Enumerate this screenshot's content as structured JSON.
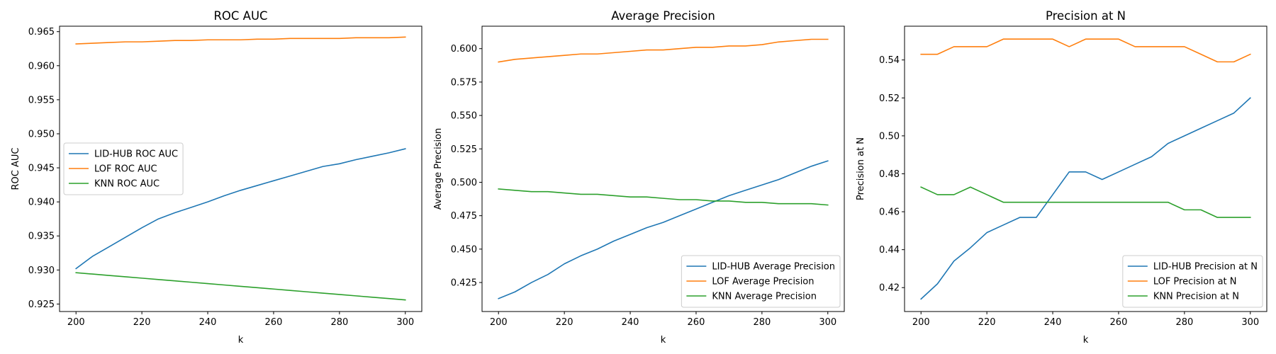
{
  "chart_data": [
    {
      "type": "line",
      "title": "ROC AUC",
      "xlabel": "k",
      "ylabel": "ROC AUC",
      "xlim": [
        195,
        305
      ],
      "ylim": [
        0.9239,
        0.9658
      ],
      "xticks": [
        200,
        220,
        240,
        260,
        280,
        300
      ],
      "yticks": [
        0.925,
        0.93,
        0.935,
        0.94,
        0.945,
        0.95,
        0.955,
        0.96,
        0.965
      ],
      "ytick_decimals": 3,
      "legend_position": "center-left",
      "x": [
        200,
        205,
        210,
        215,
        220,
        225,
        230,
        235,
        240,
        245,
        250,
        255,
        260,
        265,
        270,
        275,
        280,
        285,
        290,
        295,
        300
      ],
      "series": [
        {
          "name": "LID-HUB ROC AUC",
          "color": "#1f77b4",
          "values": [
            0.9302,
            0.932,
            0.9334,
            0.9348,
            0.9362,
            0.9375,
            0.9384,
            0.9392,
            0.94,
            0.9409,
            0.9417,
            0.9424,
            0.9431,
            0.9438,
            0.9445,
            0.9452,
            0.9456,
            0.9462,
            0.9467,
            0.9472,
            0.9478
          ]
        },
        {
          "name": "LOF ROC AUC",
          "color": "#ff7f0e",
          "values": [
            0.9632,
            0.9633,
            0.9634,
            0.9635,
            0.9635,
            0.9636,
            0.9637,
            0.9637,
            0.9638,
            0.9638,
            0.9638,
            0.9639,
            0.9639,
            0.964,
            0.964,
            0.964,
            0.964,
            0.9641,
            0.9641,
            0.9641,
            0.9642
          ]
        },
        {
          "name": "KNN ROC AUC",
          "color": "#2ca02c",
          "values": [
            0.9296,
            0.9294,
            0.9292,
            0.929,
            0.9288,
            0.9286,
            0.9284,
            0.9282,
            0.928,
            0.9278,
            0.9276,
            0.9274,
            0.9272,
            0.927,
            0.9268,
            0.9266,
            0.9264,
            0.9262,
            0.926,
            0.9258,
            0.9256
          ]
        }
      ]
    },
    {
      "type": "line",
      "title": "Average Precision",
      "xlabel": "k",
      "ylabel": "Average Precision",
      "xlim": [
        195,
        305
      ],
      "ylim": [
        0.4033,
        0.6168
      ],
      "xticks": [
        200,
        220,
        240,
        260,
        280,
        300
      ],
      "yticks": [
        0.425,
        0.45,
        0.475,
        0.5,
        0.525,
        0.55,
        0.575,
        0.6
      ],
      "ytick_decimals": 3,
      "legend_position": "lower-right",
      "x": [
        200,
        205,
        210,
        215,
        220,
        225,
        230,
        235,
        240,
        245,
        250,
        255,
        260,
        265,
        270,
        275,
        280,
        285,
        290,
        295,
        300
      ],
      "series": [
        {
          "name": "LID-HUB Average Precision",
          "color": "#1f77b4",
          "values": [
            0.413,
            0.418,
            0.425,
            0.431,
            0.439,
            0.445,
            0.45,
            0.456,
            0.461,
            0.466,
            0.47,
            0.475,
            0.48,
            0.485,
            0.49,
            0.494,
            0.498,
            0.502,
            0.507,
            0.512,
            0.516
          ]
        },
        {
          "name": "LOF Average Precision",
          "color": "#ff7f0e",
          "values": [
            0.59,
            0.592,
            0.593,
            0.594,
            0.595,
            0.596,
            0.596,
            0.597,
            0.598,
            0.599,
            0.599,
            0.6,
            0.601,
            0.601,
            0.602,
            0.602,
            0.603,
            0.605,
            0.606,
            0.607,
            0.607
          ]
        },
        {
          "name": "KNN Average Precision",
          "color": "#2ca02c",
          "values": [
            0.495,
            0.494,
            0.493,
            0.493,
            0.492,
            0.491,
            0.491,
            0.49,
            0.489,
            0.489,
            0.488,
            0.487,
            0.487,
            0.486,
            0.486,
            0.485,
            0.485,
            0.484,
            0.484,
            0.484,
            0.483
          ]
        }
      ]
    },
    {
      "type": "line",
      "title": "Precision at N",
      "xlabel": "k",
      "ylabel": "Precision at N",
      "xlim": [
        195,
        305
      ],
      "ylim": [
        0.4074,
        0.5578
      ],
      "xticks": [
        200,
        220,
        240,
        260,
        280,
        300
      ],
      "yticks": [
        0.42,
        0.44,
        0.46,
        0.48,
        0.5,
        0.52,
        0.54
      ],
      "ytick_decimals": 2,
      "legend_position": "lower-right",
      "x": [
        200,
        205,
        210,
        215,
        220,
        225,
        230,
        235,
        240,
        245,
        250,
        255,
        260,
        265,
        270,
        275,
        280,
        285,
        290,
        295,
        300
      ],
      "series": [
        {
          "name": "LID-HUB Precision at N",
          "color": "#1f77b4",
          "values": [
            0.414,
            0.422,
            0.434,
            0.441,
            0.449,
            0.453,
            0.457,
            0.457,
            0.469,
            0.481,
            0.481,
            0.477,
            0.481,
            0.485,
            0.489,
            0.496,
            0.5,
            0.504,
            0.508,
            0.512,
            0.52
          ]
        },
        {
          "name": "LOF Precision at N",
          "color": "#ff7f0e",
          "values": [
            0.543,
            0.543,
            0.547,
            0.547,
            0.547,
            0.551,
            0.551,
            0.551,
            0.551,
            0.547,
            0.551,
            0.551,
            0.551,
            0.547,
            0.547,
            0.547,
            0.547,
            0.543,
            0.539,
            0.539,
            0.543
          ]
        },
        {
          "name": "KNN Precision at N",
          "color": "#2ca02c",
          "values": [
            0.473,
            0.469,
            0.469,
            0.473,
            0.469,
            0.465,
            0.465,
            0.465,
            0.465,
            0.465,
            0.465,
            0.465,
            0.465,
            0.465,
            0.465,
            0.465,
            0.461,
            0.461,
            0.457,
            0.457,
            0.457
          ]
        }
      ]
    }
  ]
}
